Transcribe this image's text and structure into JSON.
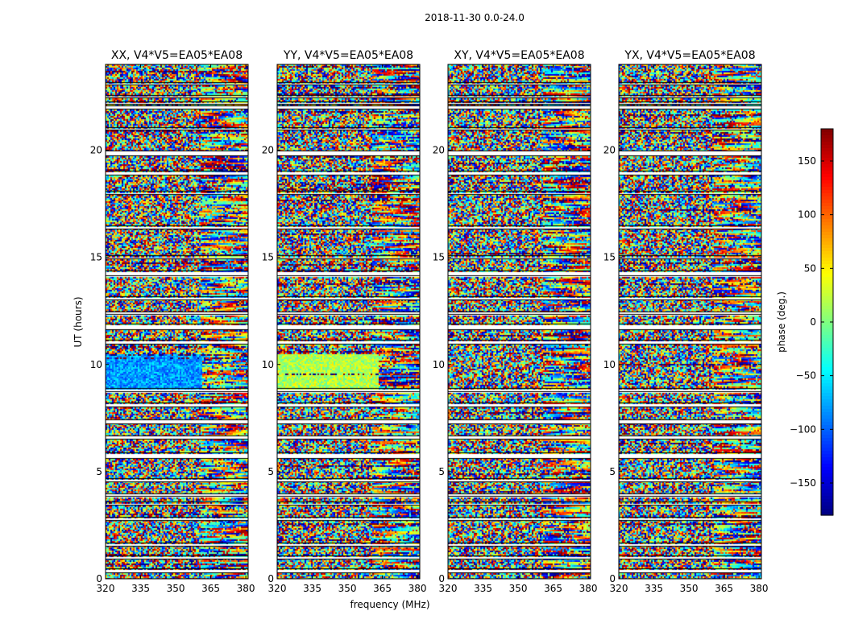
{
  "chart_data": {
    "type": "heatmap",
    "suptitle": "2018-11-30 0.0-24.0",
    "xlabel": "frequency (MHz)",
    "ylabel": "UT (hours)",
    "xlim": [
      320,
      381
    ],
    "ylim": [
      0,
      24
    ],
    "xticks": [
      320,
      335,
      350,
      365,
      380
    ],
    "yticks": [
      0,
      5,
      10,
      15,
      20
    ],
    "panels": [
      {
        "title": "XX, V4*V5=EA05*EA08",
        "pol": "XX"
      },
      {
        "title": "YY, V4*V5=EA05*EA08",
        "pol": "YY"
      },
      {
        "title": "XY, V4*V5=EA05*EA08",
        "pol": "XY"
      },
      {
        "title": "YX, V4*V5=EA05*EA08",
        "pol": "YX"
      }
    ],
    "colorbar": {
      "label": "phase (deg.)",
      "range": [
        -180,
        180
      ],
      "ticks": [
        -150,
        -100,
        -50,
        0,
        50,
        100,
        150
      ],
      "tick_labels": [
        "−150",
        "−100",
        "−50",
        "0",
        "50",
        "100",
        "150"
      ],
      "colormap": "jet"
    },
    "flagged_rows_hours": [
      [
        0.3,
        0.45
      ],
      [
        0.95,
        1.05
      ],
      [
        1.55,
        1.65
      ],
      [
        2.75,
        2.85
      ],
      [
        3.45,
        3.55
      ],
      [
        3.85,
        3.95
      ],
      [
        4.55,
        4.65
      ],
      [
        5.65,
        5.85
      ],
      [
        6.55,
        6.65
      ],
      [
        7.25,
        7.4
      ],
      [
        8.05,
        8.2
      ],
      [
        8.75,
        8.85
      ],
      [
        10.95,
        11.1
      ],
      [
        11.65,
        11.85
      ],
      [
        12.35,
        12.45
      ],
      [
        13.05,
        13.15
      ],
      [
        14.15,
        14.35
      ],
      [
        14.95,
        15.05
      ],
      [
        16.35,
        16.45
      ],
      [
        17.95,
        18.05
      ],
      [
        18.85,
        19.0
      ],
      [
        19.75,
        19.95
      ],
      [
        20.95,
        21.05
      ],
      [
        21.95,
        22.05
      ],
      [
        22.15,
        22.25
      ],
      [
        22.45,
        22.55
      ],
      [
        23.05,
        23.15
      ]
    ],
    "notable_features": [
      {
        "pol": "XX",
        "ut_range": [
          8.9,
          10.5
        ],
        "freq_range": [
          320,
          361
        ],
        "phase_deg": -80
      },
      {
        "pol": "YY",
        "ut_range": [
          8.9,
          10.5
        ],
        "freq_range": [
          320,
          363
        ],
        "phase_deg": 20
      }
    ]
  }
}
